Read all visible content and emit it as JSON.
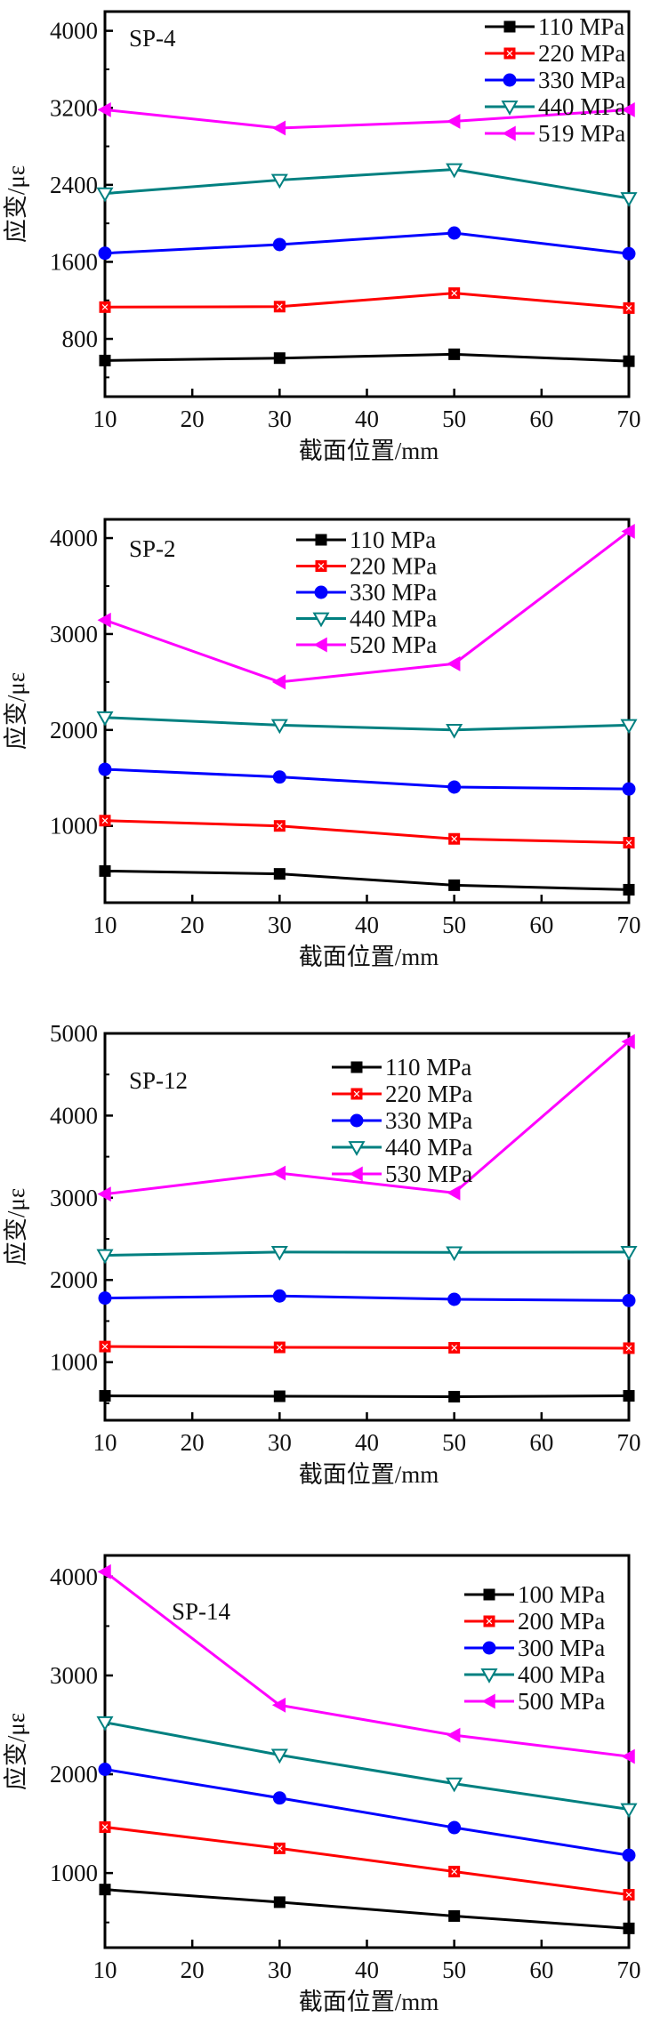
{
  "chart_data": [
    {
      "type": "line",
      "panel_label": "SP-4",
      "xlabel": "截面位置/mm",
      "ylabel": "应变/με",
      "x": [
        10,
        30,
        50,
        70
      ],
      "xlim": [
        10,
        70
      ],
      "xticks": [
        10,
        20,
        30,
        40,
        50,
        60,
        70
      ],
      "ylim": [
        200,
        4200
      ],
      "yticks": [
        800,
        1600,
        2400,
        3200,
        4000
      ],
      "yminor_step": 400,
      "grid": false,
      "legend_position": "top-right",
      "series": [
        {
          "name": "110 MPa",
          "color": "#000000",
          "marker": "square",
          "values": [
            575,
            600,
            640,
            568
          ]
        },
        {
          "name": "220 MPa",
          "color": "#ff0000",
          "marker": "square-cross",
          "values": [
            1130,
            1135,
            1275,
            1120
          ]
        },
        {
          "name": "330 MPa",
          "color": "#0000ff",
          "marker": "circle",
          "values": [
            1690,
            1780,
            1900,
            1685
          ]
        },
        {
          "name": "440 MPa",
          "color": "#008080",
          "marker": "triangle-down-open",
          "values": [
            2310,
            2450,
            2560,
            2260
          ]
        },
        {
          "name": "519 MPa",
          "color": "#ff00ff",
          "marker": "triangle-left",
          "values": [
            3180,
            2990,
            3060,
            3180
          ]
        }
      ]
    },
    {
      "type": "line",
      "panel_label": "SP-2",
      "xlabel": "截面位置/mm",
      "ylabel": "应变/με",
      "x": [
        10,
        30,
        50,
        70
      ],
      "xlim": [
        10,
        70
      ],
      "xticks": [
        10,
        20,
        30,
        40,
        50,
        60,
        70
      ],
      "ylim": [
        200,
        4195
      ],
      "yticks": [
        1000,
        2000,
        3000,
        4000
      ],
      "yminor_step": 500,
      "grid": false,
      "legend_position": "top-center",
      "series": [
        {
          "name": "110 MPa",
          "color": "#000000",
          "marker": "square",
          "values": [
            530,
            500,
            382,
            335
          ]
        },
        {
          "name": "220 MPa",
          "color": "#ff0000",
          "marker": "square-cross",
          "values": [
            1055,
            1000,
            865,
            825
          ]
        },
        {
          "name": "330 MPa",
          "color": "#0000ff",
          "marker": "circle",
          "values": [
            1590,
            1510,
            1405,
            1385
          ]
        },
        {
          "name": "440 MPa",
          "color": "#008080",
          "marker": "triangle-down-open",
          "values": [
            2130,
            2050,
            2000,
            2050
          ]
        },
        {
          "name": "520 MPa",
          "color": "#ff00ff",
          "marker": "triangle-left",
          "values": [
            3145,
            2500,
            2690,
            4070
          ]
        }
      ]
    },
    {
      "type": "line",
      "panel_label": "SP-12",
      "xlabel": "截面位置/mm",
      "ylabel": "应变/με",
      "x": [
        10,
        30,
        50,
        70
      ],
      "xlim": [
        10,
        70
      ],
      "xticks": [
        10,
        20,
        30,
        40,
        50,
        60,
        70
      ],
      "ylim": [
        293,
        5000
      ],
      "yticks": [
        1000,
        2000,
        3000,
        4000,
        5000
      ],
      "yminor_step": 500,
      "grid": false,
      "legend_position": "top-center",
      "series": [
        {
          "name": "110 MPa",
          "color": "#000000",
          "marker": "square",
          "values": [
            590,
            585,
            580,
            590
          ]
        },
        {
          "name": "220 MPa",
          "color": "#ff0000",
          "marker": "square-cross",
          "values": [
            1190,
            1180,
            1175,
            1170
          ]
        },
        {
          "name": "330 MPa",
          "color": "#0000ff",
          "marker": "circle",
          "values": [
            1780,
            1805,
            1765,
            1750
          ]
        },
        {
          "name": "440 MPa",
          "color": "#008080",
          "marker": "triangle-down-open",
          "values": [
            2300,
            2340,
            2335,
            2340
          ]
        },
        {
          "name": "530 MPa",
          "color": "#ff00ff",
          "marker": "triangle-left",
          "values": [
            3045,
            3300,
            3060,
            4900
          ]
        }
      ]
    },
    {
      "type": "line",
      "panel_label": "SP-14",
      "xlabel": "截面位置/mm",
      "ylabel": "应变/με",
      "x": [
        10,
        30,
        50,
        70
      ],
      "xlim": [
        10,
        70
      ],
      "xticks": [
        10,
        20,
        30,
        40,
        50,
        60,
        70
      ],
      "ylim": [
        245,
        4215
      ],
      "yticks": [
        1000,
        2000,
        3000,
        4000
      ],
      "yminor_step": 500,
      "grid": false,
      "legend_position": "top-right",
      "series": [
        {
          "name": "100 MPa",
          "color": "#000000",
          "marker": "square",
          "values": [
            833,
            705,
            565,
            440
          ]
        },
        {
          "name": "200 MPa",
          "color": "#ff0000",
          "marker": "square-cross",
          "values": [
            1465,
            1250,
            1015,
            780
          ]
        },
        {
          "name": "300 MPa",
          "color": "#0000ff",
          "marker": "circle",
          "values": [
            2050,
            1760,
            1460,
            1180
          ]
        },
        {
          "name": "400 MPa",
          "color": "#008080",
          "marker": "triangle-down-open",
          "values": [
            2525,
            2195,
            1905,
            1645
          ]
        },
        {
          "name": "500 MPa",
          "color": "#ff00ff",
          "marker": "triangle-left",
          "values": [
            4050,
            2700,
            2395,
            2180
          ]
        }
      ]
    }
  ]
}
